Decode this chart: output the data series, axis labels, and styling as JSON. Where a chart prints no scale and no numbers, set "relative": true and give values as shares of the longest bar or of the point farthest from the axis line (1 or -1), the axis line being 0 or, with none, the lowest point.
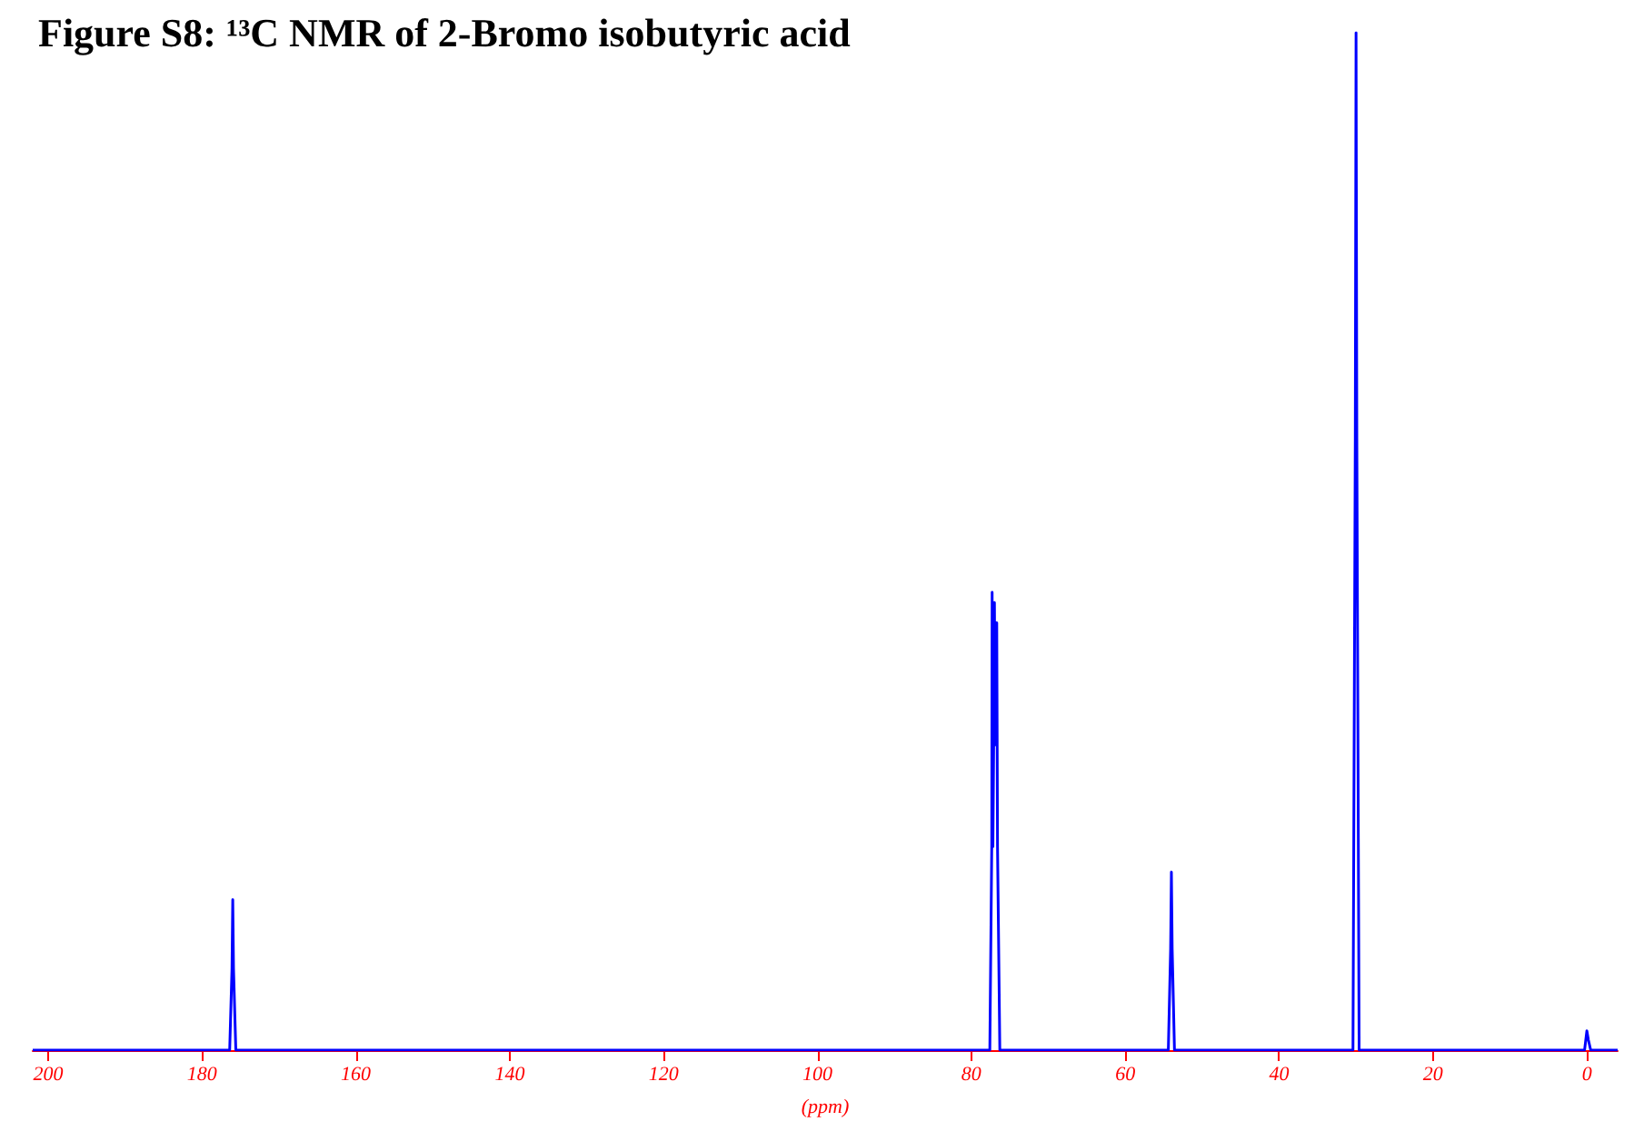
{
  "chart_data": {
    "type": "line",
    "title": "Figure S8: ¹³C NMR of 2-Bromo isobutyric acid",
    "xlabel": "(ppm)",
    "relative": true,
    "xlim": [
      202,
      -4
    ],
    "xticks": [
      200,
      180,
      160,
      140,
      120,
      100,
      80,
      60,
      40,
      20,
      0
    ],
    "grid": false,
    "marker": "none",
    "line_style": "solid",
    "series": [
      {
        "color": "#0000ff",
        "x": [
          202,
          176.4,
          176.1,
          176.0,
          175.9,
          175.6,
          77.6,
          77.35,
          77.3,
          77.2,
          77.05,
          77.0,
          76.9,
          76.75,
          76.7,
          76.6,
          76.3,
          54.4,
          54.1,
          54.0,
          53.9,
          53.6,
          30.4,
          30.1,
          30.0,
          29.9,
          29.6,
          0.3,
          0.0,
          -0.1,
          -0.2,
          -0.5,
          -4
        ],
        "values": [
          0,
          0,
          0.08,
          0.148,
          0.08,
          0,
          0,
          0.2,
          0.45,
          0.2,
          0.35,
          0.44,
          0.3,
          0.3,
          0.42,
          0.2,
          0,
          0,
          0.1,
          0.175,
          0.1,
          0,
          0,
          0.6,
          1,
          0.6,
          0,
          0,
          0.019,
          0.019,
          0.01,
          0,
          0
        ]
      }
    ]
  }
}
